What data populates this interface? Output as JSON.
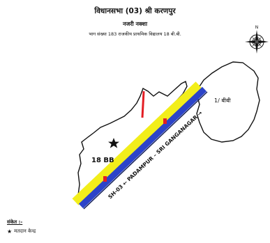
{
  "header": {
    "title": "विधानसभा (03) श्री करणपुर",
    "subtitle": "नजरी नक्शा",
    "caption": "भाग संख्या 183 राजकीय प्राथमिक विद्यालय 18 बी.बी."
  },
  "map": {
    "village_label": "18 BB",
    "neighbor_label": "1/ बीबी",
    "road_label": "SH-03 ← PADAMPUR – SRI GANGANAGAR →",
    "compass_label": "N",
    "colors": {
      "road_yellow": "#f2ee1a",
      "road_blue": "#2c44c8",
      "road_dark": "#14205a",
      "marker_red": "#e31e24"
    }
  },
  "legend": {
    "heading": "संकेत :-",
    "items": [
      {
        "icon": "star-icon",
        "label": "मतदान केन्द्र"
      }
    ]
  }
}
